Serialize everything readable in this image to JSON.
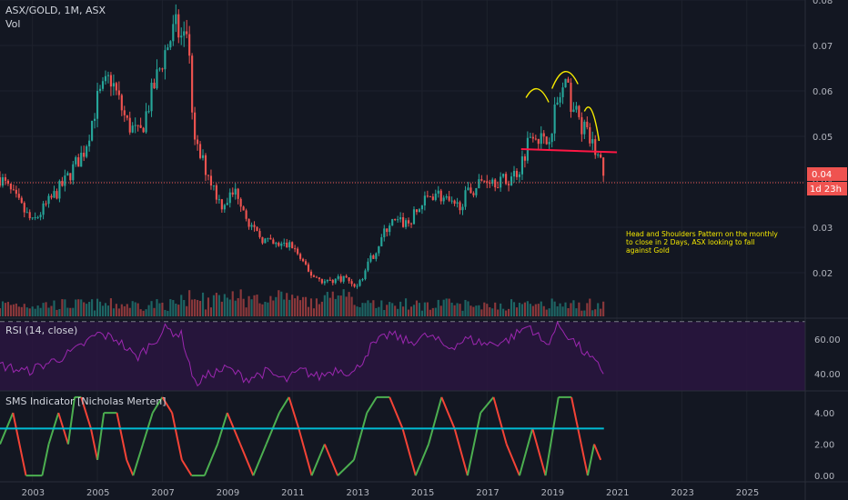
{
  "header": {
    "symbol": "ASX/GOLD, 1M, ASX",
    "volume_label": "Vol"
  },
  "price_tag": {
    "value": "0.04",
    "countdown": "1d 23h"
  },
  "annotation": {
    "lines": [
      "Head and Shoulders Pattern on the monthly",
      "to close in 2 Days, ASX looking to fall",
      "against Gold"
    ]
  },
  "colors": {
    "background": "#131722",
    "up": "#26a69a",
    "down": "#ef5350",
    "rsi_line": "#9c27b0",
    "sms_up": "#4caf50",
    "sms_down": "#f44336",
    "sms_threshold": "#00bcd4",
    "pattern": "#f5e900",
    "neckline": "#ff1744"
  },
  "chart_data": [
    {
      "name": "ASX/GOLD, 1M, ASX",
      "type": "candlestick",
      "y_ticks": [
        0.02,
        0.03,
        0.04,
        0.05,
        0.06,
        0.07,
        0.08
      ],
      "ylim": [
        0.01,
        0.08
      ],
      "x_ticks": [
        "2003",
        "2005",
        "2007",
        "2009",
        "2011",
        "2013",
        "2015",
        "2017",
        "2019",
        "2021",
        "2023",
        "2025"
      ],
      "xlim": [
        2002.0,
        2026.8
      ],
      "approx_close_path": [
        [
          2002.0,
          0.041
        ],
        [
          2003.0,
          0.031
        ],
        [
          2004.0,
          0.04
        ],
        [
          2004.6,
          0.047
        ],
        [
          2005.0,
          0.058
        ],
        [
          2005.4,
          0.063
        ],
        [
          2005.9,
          0.053
        ],
        [
          2006.3,
          0.05
        ],
        [
          2006.7,
          0.06
        ],
        [
          2007.1,
          0.069
        ],
        [
          2007.4,
          0.074
        ],
        [
          2007.8,
          0.069
        ],
        [
          2008.0,
          0.048
        ],
        [
          2008.4,
          0.042
        ],
        [
          2008.8,
          0.035
        ],
        [
          2009.3,
          0.038
        ],
        [
          2009.8,
          0.029
        ],
        [
          2010.4,
          0.026
        ],
        [
          2011.0,
          0.026
        ],
        [
          2011.5,
          0.02
        ],
        [
          2012.0,
          0.018
        ],
        [
          2012.6,
          0.019
        ],
        [
          2013.0,
          0.017
        ],
        [
          2013.5,
          0.024
        ],
        [
          2014.0,
          0.031
        ],
        [
          2014.6,
          0.031
        ],
        [
          2015.0,
          0.035
        ],
        [
          2015.4,
          0.038
        ],
        [
          2016.0,
          0.034
        ],
        [
          2016.5,
          0.038
        ],
        [
          2017.0,
          0.041
        ],
        [
          2017.6,
          0.04
        ],
        [
          2018.0,
          0.043
        ],
        [
          2018.4,
          0.052
        ],
        [
          2018.8,
          0.048
        ],
        [
          2019.2,
          0.058
        ],
        [
          2019.4,
          0.061
        ],
        [
          2019.8,
          0.054
        ],
        [
          2020.1,
          0.05
        ],
        [
          2020.4,
          0.046
        ],
        [
          2020.6,
          0.042
        ]
      ],
      "last_value": 0.04
    },
    {
      "name": "RSI (14, close)",
      "type": "line",
      "y_ticks": [
        40.0,
        60.0
      ],
      "ylim": [
        30,
        72
      ],
      "bands": [
        30,
        70
      ],
      "approx_points": [
        [
          2002.0,
          45
        ],
        [
          2002.8,
          41
        ],
        [
          2003.6,
          47
        ],
        [
          2004.3,
          53
        ],
        [
          2005.0,
          63
        ],
        [
          2005.6,
          60
        ],
        [
          2006.2,
          49
        ],
        [
          2006.7,
          58
        ],
        [
          2007.1,
          66
        ],
        [
          2007.6,
          62
        ],
        [
          2008.0,
          34
        ],
        [
          2008.5,
          40
        ],
        [
          2009.0,
          43
        ],
        [
          2009.6,
          37
        ],
        [
          2010.2,
          41
        ],
        [
          2010.8,
          36
        ],
        [
          2011.3,
          42
        ],
        [
          2011.8,
          38
        ],
        [
          2012.4,
          43
        ],
        [
          2012.9,
          40
        ],
        [
          2013.4,
          55
        ],
        [
          2014.0,
          63
        ],
        [
          2014.6,
          58
        ],
        [
          2015.2,
          62
        ],
        [
          2015.8,
          55
        ],
        [
          2016.4,
          60
        ],
        [
          2017.0,
          57
        ],
        [
          2017.6,
          59
        ],
        [
          2018.3,
          68
        ],
        [
          2018.8,
          56
        ],
        [
          2019.2,
          68
        ],
        [
          2019.6,
          60
        ],
        [
          2020.0,
          52
        ],
        [
          2020.6,
          41
        ]
      ]
    },
    {
      "name": "SMS Indicator [Nicholas Merten]",
      "type": "line",
      "y_ticks": [
        0.0,
        2.0,
        4.0
      ],
      "ylim": [
        -0.4,
        5.4
      ],
      "threshold": 3,
      "approx_points": [
        [
          2002.0,
          2
        ],
        [
          2002.4,
          4
        ],
        [
          2002.8,
          0
        ],
        [
          2003.3,
          0
        ],
        [
          2003.5,
          2
        ],
        [
          2003.8,
          4
        ],
        [
          2004.1,
          2
        ],
        [
          2004.3,
          5
        ],
        [
          2004.5,
          5
        ],
        [
          2004.8,
          3
        ],
        [
          2005.0,
          1
        ],
        [
          2005.2,
          4
        ],
        [
          2005.6,
          4
        ],
        [
          2005.9,
          1
        ],
        [
          2006.1,
          0
        ],
        [
          2006.4,
          2
        ],
        [
          2006.7,
          4
        ],
        [
          2007.0,
          5
        ],
        [
          2007.3,
          4
        ],
        [
          2007.6,
          1
        ],
        [
          2007.9,
          0
        ],
        [
          2008.3,
          0
        ],
        [
          2008.7,
          2
        ],
        [
          2009.0,
          4
        ],
        [
          2009.4,
          2
        ],
        [
          2009.8,
          0
        ],
        [
          2010.2,
          2
        ],
        [
          2010.6,
          4
        ],
        [
          2010.9,
          5
        ],
        [
          2011.2,
          3
        ],
        [
          2011.6,
          0
        ],
        [
          2012.0,
          2
        ],
        [
          2012.4,
          0
        ],
        [
          2012.9,
          1
        ],
        [
          2013.3,
          4
        ],
        [
          2013.6,
          5
        ],
        [
          2014.0,
          5
        ],
        [
          2014.4,
          3
        ],
        [
          2014.8,
          0
        ],
        [
          2015.2,
          2
        ],
        [
          2015.6,
          5
        ],
        [
          2016.0,
          3
        ],
        [
          2016.4,
          0
        ],
        [
          2016.8,
          4
        ],
        [
          2017.2,
          5
        ],
        [
          2017.6,
          2
        ],
        [
          2018.0,
          0
        ],
        [
          2018.4,
          3
        ],
        [
          2018.8,
          0
        ],
        [
          2019.2,
          5
        ],
        [
          2019.6,
          5
        ],
        [
          2019.9,
          2
        ],
        [
          2020.1,
          0
        ],
        [
          2020.3,
          2
        ],
        [
          2020.5,
          1
        ]
      ]
    }
  ]
}
